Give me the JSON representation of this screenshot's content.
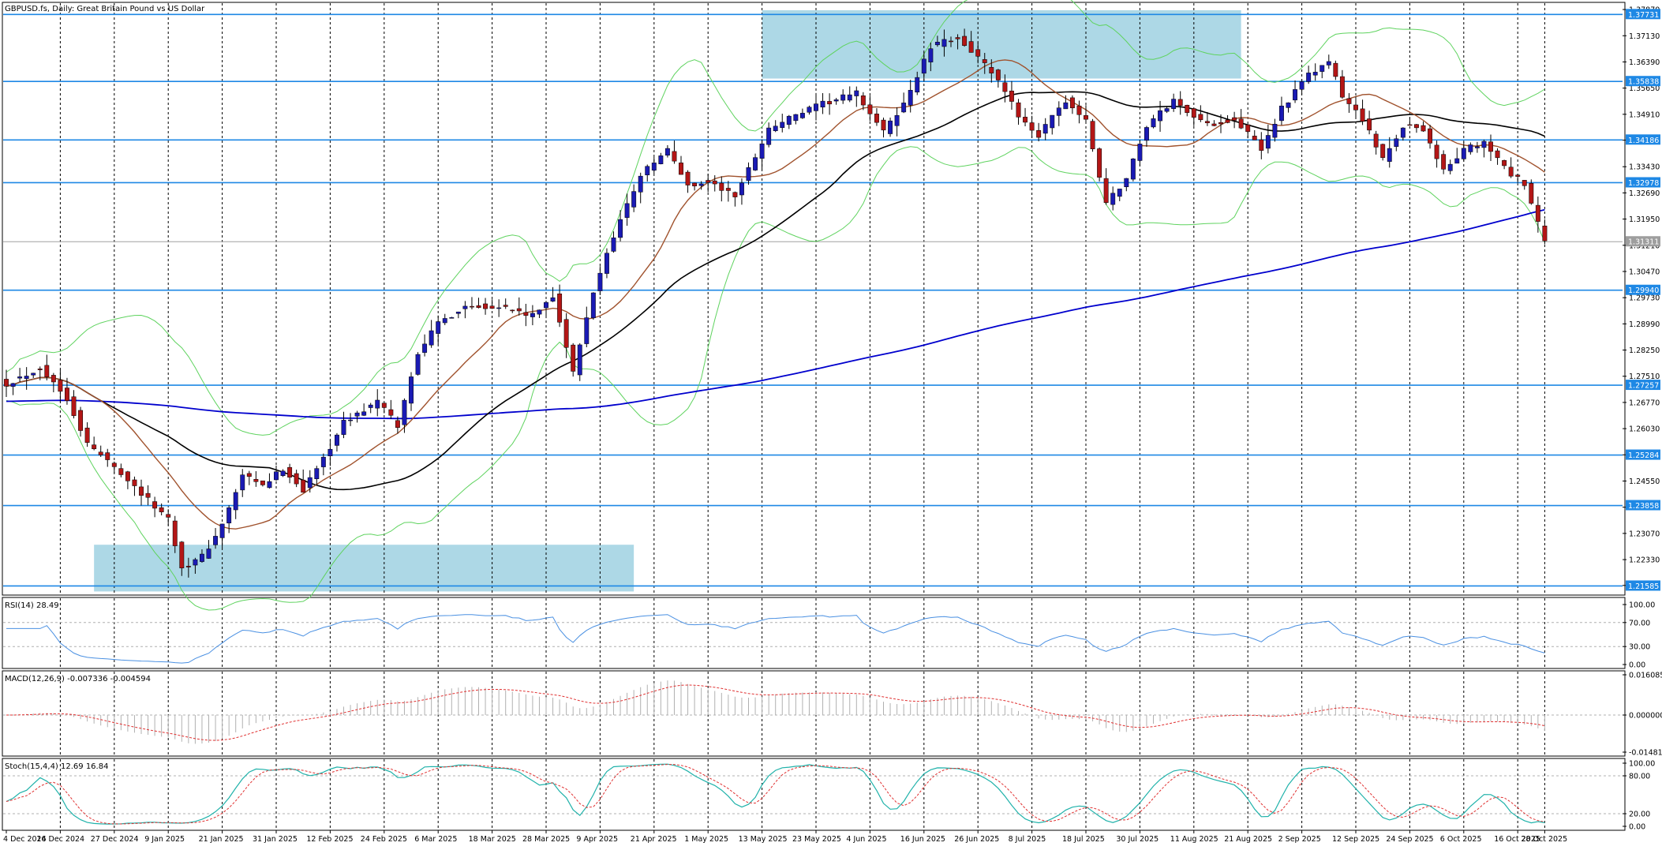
{
  "chart_data": {
    "type": "candlestick",
    "symbol_title": "GBPUSD.fs, Daily:  Great Britain Pound vs US Dollar",
    "y_ticks": [
      "1.37870",
      "1.37130",
      "1.36390",
      "1.35650",
      "1.34910",
      "1.34180",
      "1.33430",
      "1.32690",
      "1.31950",
      "1.31210",
      "1.30470",
      "1.29730",
      "1.28990",
      "1.28250",
      "1.27510",
      "1.26770",
      "1.26030",
      "1.25290",
      "1.24550",
      "1.23810",
      "1.23070",
      "1.22330",
      "1.21600"
    ],
    "ylim": [
      1.2135,
      1.3805
    ],
    "x_ticks": [
      "4 Dec 2024",
      "16 Dec 2024",
      "27 Dec 2024",
      "9 Jan 2025",
      "21 Jan 2025",
      "31 Jan 2025",
      "12 Feb 2025",
      "24 Feb 2025",
      "6 Mar 2025",
      "18 Mar 2025",
      "28 Mar 2025",
      "9 Apr 2025",
      "21 Apr 2025",
      "1 May 2025",
      "13 May 2025",
      "23 May 2025",
      "4 Jun 2025",
      "16 Jun 2025",
      "26 Jun 2025",
      "8 Jul 2025",
      "18 Jul 2025",
      "30 Jul 2025",
      "11 Aug 2025",
      "21 Aug 2025",
      "2 Sep 2025",
      "12 Sep 2025",
      "24 Sep 2025",
      "6 Oct 2025",
      "16 Oct 2025",
      "28 Oct 2025"
    ],
    "price_levels": [
      {
        "value": 1.37731,
        "label": "1.37731",
        "color": "#1e88e5"
      },
      {
        "value": 1.35838,
        "label": "1.35838",
        "color": "#1e88e5"
      },
      {
        "value": 1.34186,
        "label": "1.34186",
        "color": "#1e88e5"
      },
      {
        "value": 1.32978,
        "label": "1.32978",
        "color": "#1e88e5"
      },
      {
        "value": 1.2994,
        "label": "1.29940",
        "color": "#1e88e5"
      },
      {
        "value": 1.27257,
        "label": "1.27257",
        "color": "#1e88e5"
      },
      {
        "value": 1.25284,
        "label": "1.25284",
        "color": "#1e88e5"
      },
      {
        "value": 1.23858,
        "label": "1.23858",
        "color": "#1e88e5"
      },
      {
        "value": 1.21585,
        "label": "1.21585",
        "color": "#1e88e5"
      }
    ],
    "current_price": {
      "value": 1.31311,
      "label": "1.31311"
    },
    "zones": [
      {
        "x_start": 112,
        "x_end": 183,
        "y_top": 1.3785,
        "y_bottom": 1.3592,
        "color": "#add8e6"
      },
      {
        "x_start": 13,
        "x_end": 93,
        "y_top": 1.2275,
        "y_bottom": 1.2143,
        "color": "#add8e6"
      }
    ],
    "anchors": [
      {
        "idx": 0,
        "close": 1.273
      },
      {
        "idx": 5,
        "close": 1.2775
      },
      {
        "idx": 9,
        "close": 1.269
      },
      {
        "idx": 12,
        "close": 1.256
      },
      {
        "idx": 17,
        "close": 1.248
      },
      {
        "idx": 21,
        "close": 1.24
      },
      {
        "idx": 24,
        "close": 1.235
      },
      {
        "idx": 26,
        "close": 1.221
      },
      {
        "idx": 29,
        "close": 1.224
      },
      {
        "idx": 32,
        "close": 1.233
      },
      {
        "idx": 35,
        "close": 1.247
      },
      {
        "idx": 38,
        "close": 1.244
      },
      {
        "idx": 41,
        "close": 1.249
      },
      {
        "idx": 44,
        "close": 1.243
      },
      {
        "idx": 47,
        "close": 1.252
      },
      {
        "idx": 50,
        "close": 1.262
      },
      {
        "idx": 55,
        "close": 1.268
      },
      {
        "idx": 58,
        "close": 1.261
      },
      {
        "idx": 61,
        "close": 1.282
      },
      {
        "idx": 64,
        "close": 1.29
      },
      {
        "idx": 68,
        "close": 1.295
      },
      {
        "idx": 73,
        "close": 1.295
      },
      {
        "idx": 78,
        "close": 1.292
      },
      {
        "idx": 81,
        "close": 1.298
      },
      {
        "idx": 84,
        "close": 1.276
      },
      {
        "idx": 87,
        "close": 1.299
      },
      {
        "idx": 90,
        "close": 1.315
      },
      {
        "idx": 94,
        "close": 1.332
      },
      {
        "idx": 98,
        "close": 1.339
      },
      {
        "idx": 101,
        "close": 1.329
      },
      {
        "idx": 104,
        "close": 1.33
      },
      {
        "idx": 108,
        "close": 1.326
      },
      {
        "idx": 113,
        "close": 1.345
      },
      {
        "idx": 116,
        "close": 1.348
      },
      {
        "idx": 121,
        "close": 1.352
      },
      {
        "idx": 126,
        "close": 1.355
      },
      {
        "idx": 130,
        "close": 1.344
      },
      {
        "idx": 133,
        "close": 1.352
      },
      {
        "idx": 137,
        "close": 1.368
      },
      {
        "idx": 141,
        "close": 1.371
      },
      {
        "idx": 146,
        "close": 1.361
      },
      {
        "idx": 150,
        "close": 1.349
      },
      {
        "idx": 153,
        "close": 1.343
      },
      {
        "idx": 157,
        "close": 1.353
      },
      {
        "idx": 160,
        "close": 1.347
      },
      {
        "idx": 163,
        "close": 1.324
      },
      {
        "idx": 166,
        "close": 1.331
      },
      {
        "idx": 169,
        "close": 1.346
      },
      {
        "idx": 173,
        "close": 1.353
      },
      {
        "idx": 178,
        "close": 1.346
      },
      {
        "idx": 182,
        "close": 1.348
      },
      {
        "idx": 186,
        "close": 1.339
      },
      {
        "idx": 189,
        "close": 1.351
      },
      {
        "idx": 193,
        "close": 1.36
      },
      {
        "idx": 196,
        "close": 1.364
      },
      {
        "idx": 198,
        "close": 1.354
      },
      {
        "idx": 201,
        "close": 1.348
      },
      {
        "idx": 204,
        "close": 1.336
      },
      {
        "idx": 207,
        "close": 1.346
      },
      {
        "idx": 210,
        "close": 1.345
      },
      {
        "idx": 213,
        "close": 1.333
      },
      {
        "idx": 216,
        "close": 1.339
      },
      {
        "idx": 219,
        "close": 1.341
      },
      {
        "idx": 222,
        "close": 1.334
      },
      {
        "idx": 225,
        "close": 1.329
      },
      {
        "idx": 227,
        "close": 1.318
      },
      {
        "idx": 228,
        "close": 1.3131
      }
    ],
    "rsi": {
      "label": "RSI(14) 28.49",
      "ticks": [
        "100.00",
        "70.00",
        "30.00",
        "0.00"
      ],
      "levels": [
        70,
        30
      ]
    },
    "macd": {
      "label": "MACD(12,26,9) -0.007336 -0.004594",
      "ticks": [
        "0.016085",
        "0.000000",
        "-0.014818"
      ]
    },
    "stoch": {
      "label": "Stoch(15,4,4) 12.69 16.84",
      "ticks": [
        "100.00",
        "80.00",
        "20.00",
        "0.00"
      ],
      "levels": [
        80,
        20
      ]
    },
    "colors": {
      "bull": "#1a1ab4",
      "bear": "#b31616",
      "ma200": "#0000cd",
      "ma50": "#000000",
      "ma20": "#a0522d",
      "bands": "#5fd35f",
      "level": "#1e88e5",
      "zone": "#add8e6",
      "rsi": "#4a90e2",
      "macd_signal": "#e03030",
      "macd_hist": "#b0b0b0",
      "stoch_main": "#20b2aa",
      "stoch_signal": "#e03030",
      "grid": "#000000"
    }
  }
}
